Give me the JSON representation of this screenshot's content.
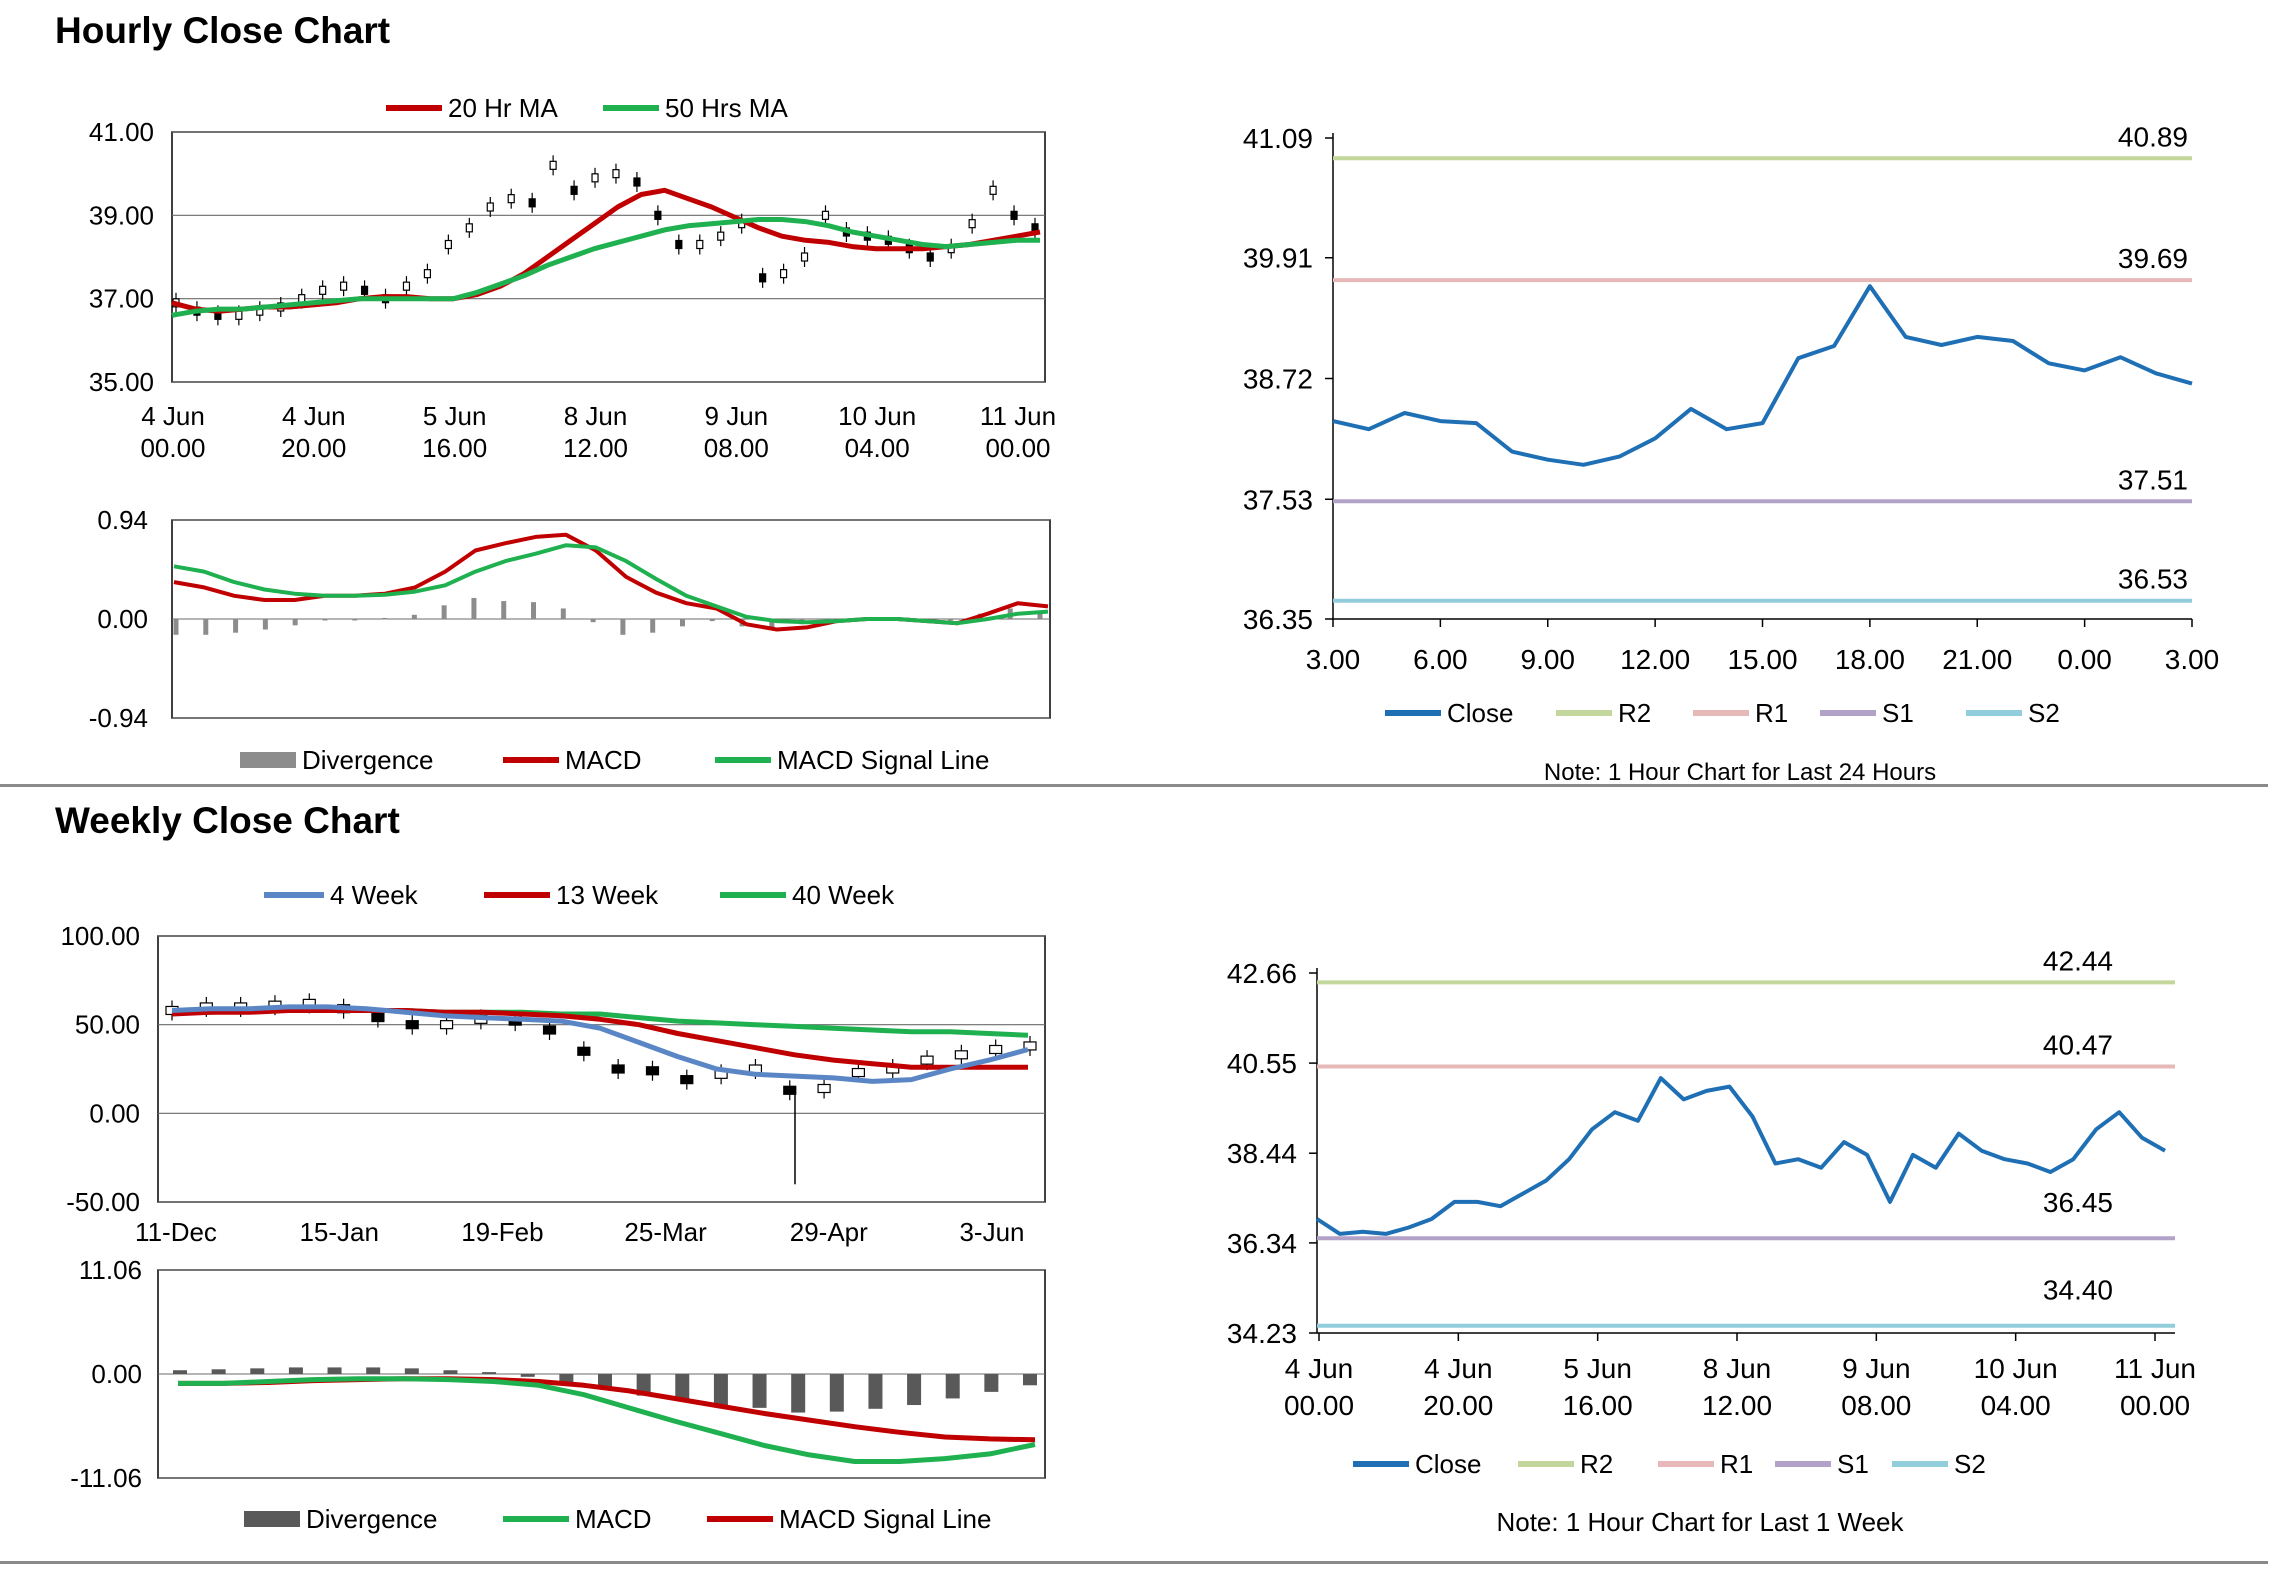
{
  "sections": {
    "hourly_title": "Hourly Close Chart",
    "weekly_title": "Weekly Close Chart"
  },
  "colors": {
    "ma_red": "#c00000",
    "ma_green": "#1fb050",
    "ma_blue": "#5b86c5",
    "close": "#1f6fb5",
    "r2": "#c3d69b",
    "r1": "#e6b9b8",
    "s1": "#b3a2c7",
    "s2": "#92cddc",
    "divergence_light": "#8c8c8c",
    "divergence_dark": "#595959"
  },
  "chart_data": [
    {
      "id": "hourly_price",
      "type": "line",
      "title": "",
      "legend": [
        "20 Hr MA",
        "50 Hrs MA"
      ],
      "ylim": [
        35,
        41
      ],
      "yticks": [
        "41.00",
        "39.00",
        "37.00",
        "35.00"
      ],
      "xticks": [
        [
          "4 Jun",
          "00.00"
        ],
        [
          "4 Jun",
          "20.00"
        ],
        [
          "5 Jun",
          "16.00"
        ],
        [
          "8 Jun",
          "12.00"
        ],
        [
          "9 Jun",
          "08.00"
        ],
        [
          "10 Jun",
          "04.00"
        ],
        [
          "11 Jun",
          "00.00"
        ]
      ],
      "series": [
        {
          "name": "20 Hr MA",
          "values": [
            36.9,
            36.75,
            36.7,
            36.75,
            36.8,
            36.8,
            36.85,
            36.9,
            37.0,
            37.05,
            37.05,
            37.0,
            37.0,
            37.1,
            37.3,
            37.6,
            38.0,
            38.4,
            38.8,
            39.2,
            39.5,
            39.6,
            39.4,
            39.2,
            38.95,
            38.7,
            38.5,
            38.4,
            38.35,
            38.25,
            38.2,
            38.2,
            38.2,
            38.25,
            38.3,
            38.4,
            38.5,
            38.6
          ]
        },
        {
          "name": "50 Hrs MA",
          "values": [
            36.6,
            36.7,
            36.75,
            36.75,
            36.8,
            36.85,
            36.9,
            36.95,
            37.0,
            37.0,
            37.0,
            37.0,
            37.0,
            37.15,
            37.35,
            37.55,
            37.8,
            38.0,
            38.2,
            38.35,
            38.5,
            38.65,
            38.75,
            38.8,
            38.85,
            38.9,
            38.9,
            38.85,
            38.75,
            38.6,
            38.5,
            38.4,
            38.3,
            38.25,
            38.3,
            38.35,
            38.4,
            38.4
          ]
        }
      ],
      "candles": [
        36.9,
        36.7,
        36.6,
        36.6,
        36.7,
        36.8,
        37.0,
        37.2,
        37.3,
        37.2,
        37.0,
        37.3,
        37.6,
        38.3,
        38.7,
        39.2,
        39.4,
        39.3,
        40.2,
        39.6,
        39.9,
        40.0,
        39.8,
        39.0,
        38.3,
        38.3,
        38.5,
        38.8,
        37.5,
        37.6,
        38.0,
        39.0,
        38.6,
        38.5,
        38.4,
        38.2,
        38.0,
        38.2,
        38.8,
        39.6,
        39.0,
        38.7
      ]
    },
    {
      "id": "hourly_macd",
      "type": "line",
      "ylim": [
        -0.94,
        0.94
      ],
      "yticks": [
        "0.94",
        "0.00",
        "-0.94"
      ],
      "legend": [
        "Divergence",
        "MACD",
        "MACD Signal Line"
      ],
      "series": [
        {
          "name": "MACD",
          "values": [
            0.35,
            0.3,
            0.22,
            0.18,
            0.18,
            0.22,
            0.22,
            0.24,
            0.3,
            0.45,
            0.65,
            0.72,
            0.78,
            0.8,
            0.65,
            0.4,
            0.25,
            0.15,
            0.1,
            -0.05,
            -0.1,
            -0.08,
            -0.02,
            0.0,
            0.0,
            -0.02,
            -0.04,
            0.05,
            0.15,
            0.12
          ]
        },
        {
          "name": "MACD Signal Line",
          "values": [
            0.5,
            0.45,
            0.35,
            0.28,
            0.24,
            0.22,
            0.22,
            0.23,
            0.26,
            0.32,
            0.45,
            0.55,
            0.62,
            0.7,
            0.68,
            0.55,
            0.38,
            0.22,
            0.12,
            0.02,
            -0.02,
            -0.03,
            -0.02,
            0.0,
            0.0,
            -0.02,
            -0.04,
            0.0,
            0.05,
            0.07
          ]
        }
      ],
      "divergence": [
        -0.15,
        -0.15,
        -0.13,
        -0.1,
        -0.06,
        0.0,
        0.0,
        0.01,
        0.04,
        0.13,
        0.2,
        0.17,
        0.16,
        0.1,
        -0.03,
        -0.15,
        -0.13,
        -0.07,
        -0.02,
        -0.07,
        -0.08,
        -0.05,
        0.0,
        0.0,
        0.0,
        0.0,
        0.0,
        0.05,
        0.1,
        0.05
      ]
    },
    {
      "id": "hourly_close_24h",
      "type": "line",
      "ylim": [
        36.35,
        41.09
      ],
      "yticks": [
        "41.09",
        "39.91",
        "38.72",
        "37.53",
        "36.35"
      ],
      "xticks": [
        "3.00",
        "6.00",
        "9.00",
        "12.00",
        "15.00",
        "18.00",
        "21.00",
        "0.00",
        "3.00"
      ],
      "legend": [
        "Close",
        "R2",
        "R1",
        "S1",
        "S2"
      ],
      "levels": {
        "R2": "40.89",
        "R1": "39.69",
        "S1": "37.51",
        "S2": "36.53"
      },
      "x": [
        3,
        4,
        5,
        6,
        7,
        8,
        9,
        10,
        11,
        12,
        13,
        14,
        15,
        16,
        17,
        18,
        19,
        20,
        21,
        22,
        23,
        24,
        25,
        26,
        27
      ],
      "series": [
        {
          "name": "Close",
          "values": [
            38.3,
            38.22,
            38.38,
            38.3,
            38.28,
            38.0,
            37.92,
            37.87,
            37.95,
            38.13,
            38.42,
            38.22,
            38.28,
            38.92,
            39.04,
            39.63,
            39.13,
            39.05,
            39.13,
            39.09,
            38.87,
            38.8,
            38.93,
            38.77,
            38.67
          ]
        }
      ],
      "note": "Note: 1 Hour Chart for Last 24 Hours"
    },
    {
      "id": "weekly_price",
      "type": "line",
      "ylim": [
        -50,
        100
      ],
      "yticks": [
        "100.00",
        "50.00",
        "0.00",
        "-50.00"
      ],
      "xticks": [
        "11-Dec",
        "15-Jan",
        "19-Feb",
        "25-Mar",
        "29-Apr",
        "3-Jun"
      ],
      "legend": [
        "4 Week",
        "13 Week",
        "40 Week"
      ],
      "series": [
        {
          "name": "4 Week",
          "values": [
            58,
            59,
            59,
            60,
            60,
            59,
            57,
            55,
            54,
            53,
            52,
            48,
            40,
            32,
            25,
            22,
            21,
            20,
            18,
            19,
            25,
            30,
            36
          ]
        },
        {
          "name": "13 Week",
          "values": [
            56,
            57,
            57,
            58,
            58,
            58,
            58,
            57,
            57,
            56,
            55,
            53,
            50,
            45,
            41,
            37,
            33,
            30,
            28,
            26,
            26,
            26,
            26
          ]
        },
        {
          "name": "40 Week",
          "values": [
            57,
            57,
            58,
            58,
            58,
            58,
            58,
            57,
            57,
            57,
            56,
            56,
            54,
            52,
            51,
            50,
            49,
            48,
            47,
            46,
            46,
            45,
            44
          ]
        }
      ],
      "candles": [
        58,
        60,
        60,
        61,
        62,
        59,
        54,
        50,
        50,
        53,
        52,
        47,
        35,
        25,
        24,
        19,
        22,
        25,
        13,
        14,
        23,
        25,
        30,
        33,
        36,
        38
      ]
    },
    {
      "id": "weekly_macd",
      "type": "line",
      "ylim": [
        -11.06,
        11.06
      ],
      "yticks": [
        "11.06",
        "0.00",
        "-11.06"
      ],
      "legend": [
        "Divergence",
        "MACD",
        "MACD Signal Line"
      ],
      "series": [
        {
          "name": "MACD",
          "values": [
            -1.0,
            -1.0,
            -0.8,
            -0.6,
            -0.5,
            -0.5,
            -0.6,
            -0.8,
            -1.2,
            -2.2,
            -3.6,
            -5.0,
            -6.3,
            -7.6,
            -8.6,
            -9.3,
            -9.3,
            -9.0,
            -8.5,
            -7.5
          ]
        },
        {
          "name": "MACD Signal Line",
          "values": [
            -1.0,
            -1.0,
            -0.9,
            -0.7,
            -0.6,
            -0.5,
            -0.5,
            -0.6,
            -0.8,
            -1.2,
            -1.8,
            -2.6,
            -3.4,
            -4.2,
            -4.9,
            -5.6,
            -6.2,
            -6.7,
            -6.9,
            -7.0
          ]
        }
      ],
      "divergence": [
        0.4,
        0.5,
        0.6,
        0.7,
        0.7,
        0.7,
        0.6,
        0.4,
        0.2,
        -0.3,
        -0.9,
        -1.6,
        -2.3,
        -2.8,
        -3.4,
        -3.6,
        -4.1,
        -4.0,
        -3.7,
        -3.3,
        -2.6,
        -1.9,
        -1.2
      ]
    },
    {
      "id": "weekly_close_1w",
      "type": "line",
      "ylim": [
        34.23,
        42.66
      ],
      "yticks": [
        "42.66",
        "40.55",
        "38.44",
        "36.34",
        "34.23"
      ],
      "xticks": [
        [
          "4 Jun",
          "00.00"
        ],
        [
          "4 Jun",
          "20.00"
        ],
        [
          "5 Jun",
          "16.00"
        ],
        [
          "8 Jun",
          "12.00"
        ],
        [
          "9 Jun",
          "08.00"
        ],
        [
          "10 Jun",
          "04.00"
        ],
        [
          "11 Jun",
          "00.00"
        ]
      ],
      "legend": [
        "Close",
        "R2",
        "R1",
        "S1",
        "S2"
      ],
      "levels": {
        "R2": "42.44",
        "R1": "40.47",
        "S1": "36.45",
        "S2": "34.40"
      },
      "series": [
        {
          "name": "Close",
          "values": [
            36.9,
            36.55,
            36.6,
            36.55,
            36.7,
            36.9,
            37.3,
            37.3,
            37.2,
            37.5,
            37.8,
            38.3,
            39.0,
            39.4,
            39.2,
            40.2,
            39.7,
            39.9,
            40.0,
            39.3,
            38.2,
            38.3,
            38.1,
            38.7,
            38.4,
            37.3,
            38.4,
            38.1,
            38.9,
            38.5,
            38.3,
            38.2,
            38.0,
            38.3,
            39.0,
            39.4,
            38.8,
            38.5
          ]
        }
      ],
      "note": "Note: 1 Hour Chart for Last 1 Week"
    }
  ]
}
